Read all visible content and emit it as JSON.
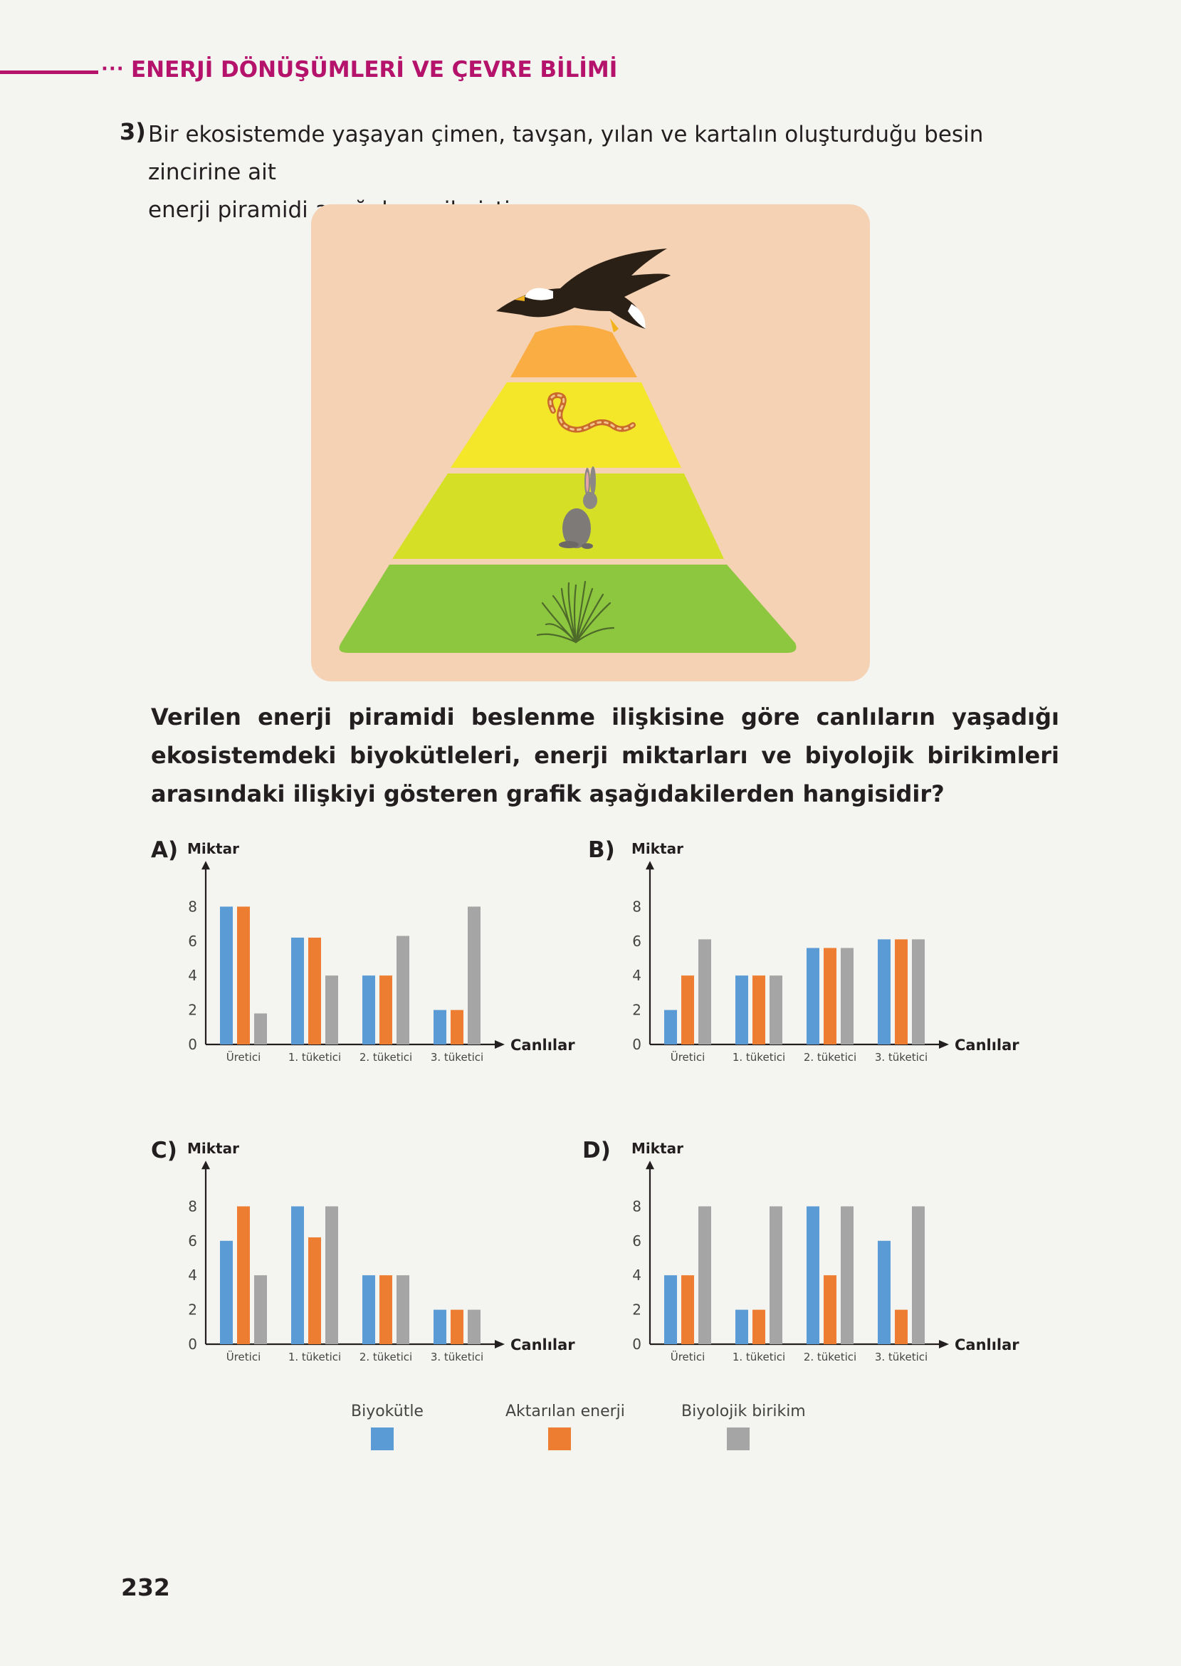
{
  "header": {
    "dots": "···",
    "title": "ENERJİ DÖNÜŞÜMLERİ VE ÇEVRE BİLİMİ"
  },
  "question": {
    "number": "3)",
    "intro_line1": "Bir ekosistemde yaşayan çimen, tavşan, yılan ve kartalın oluşturduğu besin zincirine ait",
    "intro_line2": "enerji piramidi aşağıda verilmiştir.",
    "prompt": "Verilen enerji piramidi beslenme ilişkisine göre canlıların  yaşadığı ekosistemdeki biyokütleleri, enerji miktarları ve biyolojik birikimleri arasındaki ilişkiyi gösteren grafik aşağıdakilerden hangisidir?"
  },
  "pyramid": {
    "levels": [
      {
        "organism": "kartal",
        "icon": "eagle-icon",
        "color": "#f9ad42"
      },
      {
        "organism": "yılan",
        "icon": "snake-icon",
        "color": "#f4e72a"
      },
      {
        "organism": "tavşan",
        "icon": "rabbit-icon",
        "color": "#d5df26"
      },
      {
        "organism": "çimen",
        "icon": "grass-icon",
        "color": "#8dc63f"
      }
    ]
  },
  "chart_data": [
    {
      "option": "A)",
      "type": "bar",
      "ylabel": "Miktar",
      "xlabel": "Canlılar",
      "yticks": [
        0,
        2,
        4,
        6,
        8
      ],
      "ylim": [
        0,
        9
      ],
      "categories": [
        "Üretici",
        "1. tüketici",
        "2. tüketici",
        "3. tüketici"
      ],
      "series": [
        {
          "name": "Biyokütle",
          "values": [
            8,
            6.2,
            4,
            2
          ]
        },
        {
          "name": "Aktarılan enerji",
          "values": [
            8,
            6.2,
            4,
            2
          ]
        },
        {
          "name": "Biyolojik birikim",
          "values": [
            1.8,
            4,
            6.3,
            8
          ]
        }
      ]
    },
    {
      "option": "B)",
      "type": "bar",
      "ylabel": "Miktar",
      "xlabel": "Canlılar",
      "yticks": [
        0,
        2,
        4,
        6,
        8
      ],
      "ylim": [
        0,
        9
      ],
      "categories": [
        "Üretici",
        "1. tüketici",
        "2. tüketici",
        "3. tüketici"
      ],
      "series": [
        {
          "name": "Biyokütle",
          "values": [
            2,
            4,
            5.6,
            6.1
          ]
        },
        {
          "name": "Aktarılan enerji",
          "values": [
            4,
            4,
            5.6,
            6.1
          ]
        },
        {
          "name": "Biyolojik birikim",
          "values": [
            6.1,
            4,
            5.6,
            6.1
          ]
        }
      ]
    },
    {
      "option": "C)",
      "type": "bar",
      "ylabel": "Miktar",
      "xlabel": "Canlılar",
      "yticks": [
        0,
        2,
        4,
        6,
        8
      ],
      "ylim": [
        0,
        9
      ],
      "categories": [
        "Üretici",
        "1. tüketici",
        "2. tüketici",
        "3. tüketici"
      ],
      "series": [
        {
          "name": "Biyokütle",
          "values": [
            6,
            8,
            4,
            2
          ]
        },
        {
          "name": "Aktarılan enerji",
          "values": [
            8,
            6.2,
            4,
            2
          ]
        },
        {
          "name": "Biyolojik birikim",
          "values": [
            4,
            8,
            4,
            2
          ]
        }
      ]
    },
    {
      "option": "D)",
      "type": "bar",
      "ylabel": "Miktar",
      "xlabel": "Canlılar",
      "yticks": [
        0,
        2,
        4,
        6,
        8
      ],
      "ylim": [
        0,
        9
      ],
      "categories": [
        "Üretici",
        "1. tüketici",
        "2. tüketici",
        "3. tüketici"
      ],
      "series": [
        {
          "name": "Biyokütle",
          "values": [
            4,
            2,
            8,
            6
          ]
        },
        {
          "name": "Aktarılan enerji",
          "values": [
            4,
            2,
            4,
            2
          ]
        },
        {
          "name": "Biyolojik birikim",
          "values": [
            8,
            8,
            8,
            8
          ]
        }
      ]
    }
  ],
  "legend": [
    {
      "label": "Biyokütle",
      "color": "#5b9bd5"
    },
    {
      "label": "Aktarılan enerji",
      "color": "#ed7d31"
    },
    {
      "label": "Biyolojik birikim",
      "color": "#a5a5a5"
    }
  ],
  "page_number": "232"
}
